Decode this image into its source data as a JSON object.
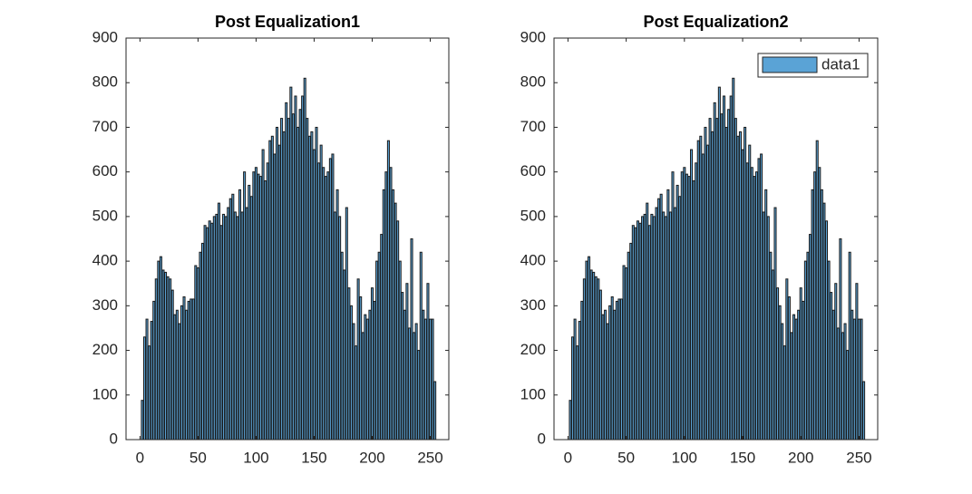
{
  "chart_data": [
    {
      "type": "bar",
      "title": "Post Equalization1",
      "x": [
        2,
        4,
        6,
        8,
        10,
        12,
        14,
        16,
        18,
        20,
        22,
        24,
        26,
        28,
        30,
        32,
        34,
        36,
        38,
        40,
        42,
        44,
        46,
        48,
        50,
        52,
        54,
        56,
        58,
        60,
        62,
        64,
        66,
        68,
        70,
        72,
        74,
        76,
        78,
        80,
        82,
        84,
        86,
        88,
        90,
        92,
        94,
        96,
        98,
        100,
        102,
        104,
        106,
        108,
        110,
        112,
        114,
        116,
        118,
        120,
        122,
        124,
        126,
        128,
        130,
        132,
        134,
        136,
        138,
        140,
        142,
        144,
        146,
        148,
        150,
        152,
        154,
        156,
        158,
        160,
        162,
        164,
        166,
        168,
        170,
        172,
        174,
        176,
        178,
        180,
        182,
        184,
        186,
        188,
        190,
        192,
        194,
        196,
        198,
        200,
        202,
        204,
        206,
        208,
        210,
        212,
        214,
        216,
        218,
        220,
        222,
        224,
        226,
        228,
        230,
        232,
        234,
        236,
        238,
        240,
        242,
        244,
        246,
        248,
        250,
        252,
        254
      ],
      "series": [
        {
          "color": "#5aa3d6",
          "values": [
            88,
            230,
            270,
            210,
            265,
            310,
            360,
            400,
            410,
            380,
            375,
            365,
            360,
            335,
            280,
            290,
            260,
            300,
            320,
            290,
            310,
            315,
            315,
            390,
            385,
            420,
            440,
            480,
            475,
            490,
            485,
            500,
            505,
            530,
            480,
            505,
            500,
            520,
            540,
            550,
            510,
            500,
            560,
            510,
            600,
            520,
            570,
            545,
            600,
            610,
            595,
            590,
            650,
            580,
            620,
            670,
            680,
            640,
            700,
            660,
            720,
            690,
            755,
            720,
            790,
            730,
            770,
            700,
            740,
            770,
            810,
            720,
            680,
            690,
            650,
            700,
            620,
            660,
            610,
            590,
            600,
            630,
            640,
            510,
            560,
            500,
            420,
            380,
            520,
            340,
            300,
            260,
            210,
            360,
            320,
            240,
            280,
            270,
            290,
            340,
            310,
            400,
            420,
            460,
            560,
            600,
            670,
            610,
            560,
            530,
            490,
            400,
            330,
            290,
            350,
            250,
            450,
            240,
            260,
            200,
            420,
            290,
            270,
            350,
            270,
            270,
            130
          ]
        }
      ],
      "xlim": [
        -12,
        266
      ],
      "xticks": [
        0,
        50,
        100,
        150,
        200,
        250
      ],
      "ylim": [
        0,
        900
      ],
      "yticks": [
        0,
        100,
        200,
        300,
        400,
        500,
        600,
        700,
        800,
        900
      ]
    },
    {
      "type": "bar",
      "title": "Post Equalization2",
      "x": [
        2,
        4,
        6,
        8,
        10,
        12,
        14,
        16,
        18,
        20,
        22,
        24,
        26,
        28,
        30,
        32,
        34,
        36,
        38,
        40,
        42,
        44,
        46,
        48,
        50,
        52,
        54,
        56,
        58,
        60,
        62,
        64,
        66,
        68,
        70,
        72,
        74,
        76,
        78,
        80,
        82,
        84,
        86,
        88,
        90,
        92,
        94,
        96,
        98,
        100,
        102,
        104,
        106,
        108,
        110,
        112,
        114,
        116,
        118,
        120,
        122,
        124,
        126,
        128,
        130,
        132,
        134,
        136,
        138,
        140,
        142,
        144,
        146,
        148,
        150,
        152,
        154,
        156,
        158,
        160,
        162,
        164,
        166,
        168,
        170,
        172,
        174,
        176,
        178,
        180,
        182,
        184,
        186,
        188,
        190,
        192,
        194,
        196,
        198,
        200,
        202,
        204,
        206,
        208,
        210,
        212,
        214,
        216,
        218,
        220,
        222,
        224,
        226,
        228,
        230,
        232,
        234,
        236,
        238,
        240,
        242,
        244,
        246,
        248,
        250,
        252,
        254
      ],
      "series": [
        {
          "name": "data1",
          "color": "#5aa3d6",
          "values": [
            88,
            230,
            270,
            210,
            265,
            310,
            360,
            400,
            410,
            380,
            375,
            365,
            360,
            335,
            280,
            290,
            260,
            300,
            320,
            290,
            310,
            315,
            315,
            390,
            385,
            420,
            440,
            480,
            475,
            490,
            485,
            500,
            505,
            530,
            480,
            505,
            500,
            520,
            540,
            550,
            510,
            500,
            560,
            510,
            600,
            520,
            570,
            545,
            600,
            610,
            595,
            590,
            650,
            580,
            620,
            670,
            680,
            640,
            700,
            660,
            720,
            690,
            755,
            720,
            790,
            730,
            770,
            700,
            740,
            770,
            810,
            720,
            680,
            690,
            650,
            700,
            620,
            660,
            610,
            590,
            600,
            630,
            640,
            510,
            560,
            500,
            420,
            380,
            520,
            340,
            300,
            260,
            210,
            360,
            320,
            240,
            280,
            270,
            290,
            340,
            310,
            400,
            420,
            460,
            560,
            600,
            670,
            610,
            560,
            530,
            490,
            400,
            330,
            290,
            350,
            250,
            450,
            240,
            260,
            200,
            420,
            290,
            270,
            350,
            270,
            270,
            130
          ]
        }
      ],
      "xlim": [
        -12,
        266
      ],
      "xticks": [
        0,
        50,
        100,
        150,
        200,
        250
      ],
      "ylim": [
        0,
        900
      ],
      "yticks": [
        0,
        100,
        200,
        300,
        400,
        500,
        600,
        700,
        800,
        900
      ],
      "legend": "northeast"
    }
  ]
}
